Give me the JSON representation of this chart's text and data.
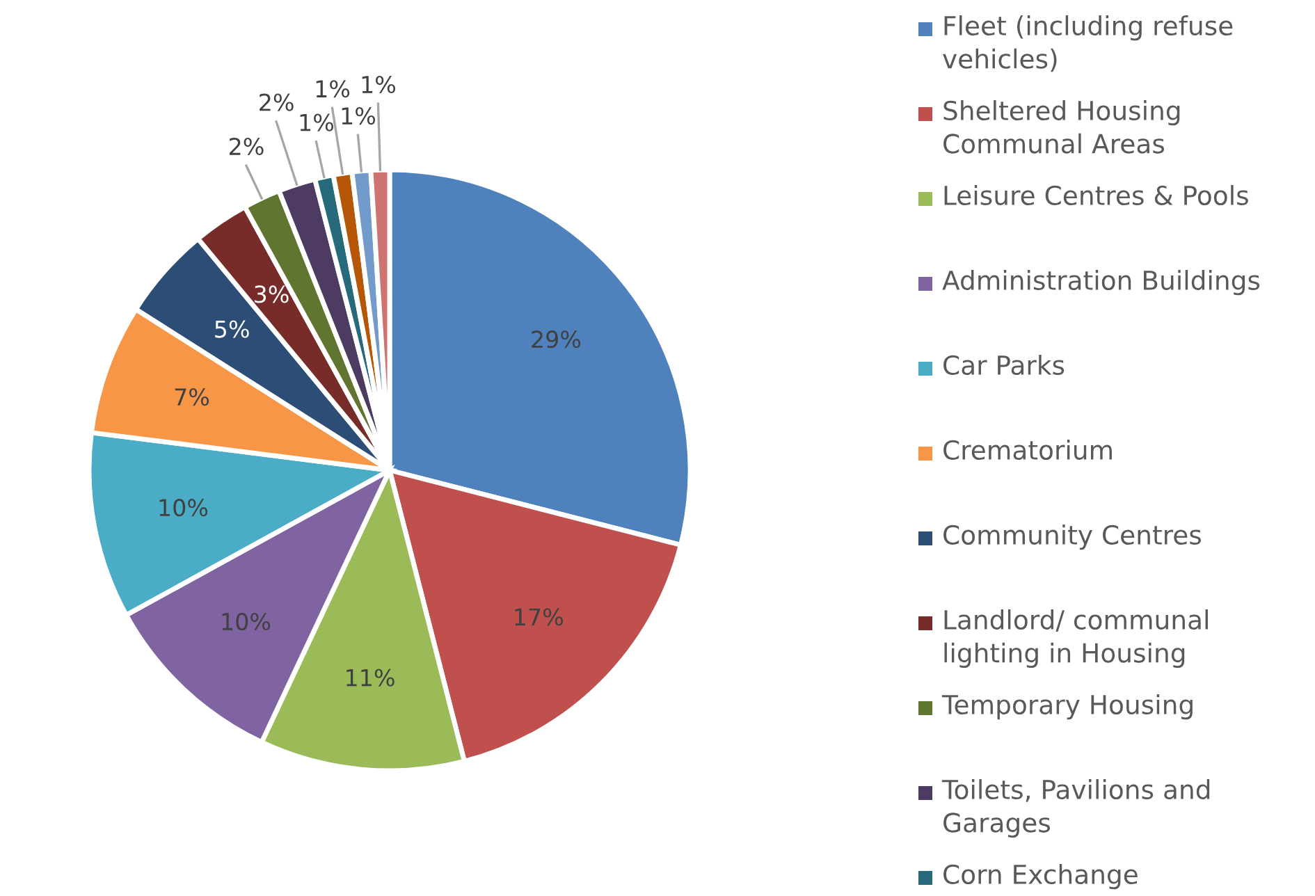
{
  "chart_data": {
    "type": "pie",
    "categories": [
      "Fleet (including refuse vehicles)",
      "Sheltered Housing Communal Areas",
      "Leisure Centres & Pools",
      "Administration Buildings",
      "Car Parks",
      "Crematorium",
      "Community Centres",
      "Landlord/ communal lighting in Housing",
      "Temporary Housing",
      "Toilets, Pavilions and Garages",
      "Corn Exchange",
      null,
      null,
      null
    ],
    "values": [
      29,
      17,
      11,
      10,
      10,
      7,
      5,
      3,
      2,
      2,
      1,
      1,
      1,
      1
    ],
    "value_labels": [
      "29%",
      "17%",
      "11%",
      "10%",
      "10%",
      "7%",
      "5%",
      "3%",
      "2%",
      "2%",
      "1%",
      "1%",
      "1%",
      "1%"
    ],
    "colors": [
      "#4f81bd",
      "#c0504d",
      "#9bbb59",
      "#8064a2",
      "#4bacc6",
      "#f79646",
      "#2c4d75",
      "#772c2a",
      "#5f7530",
      "#4d3b62",
      "#276a7c",
      "#b65708",
      "#729aca",
      "#cd7371"
    ],
    "legend": "right"
  }
}
